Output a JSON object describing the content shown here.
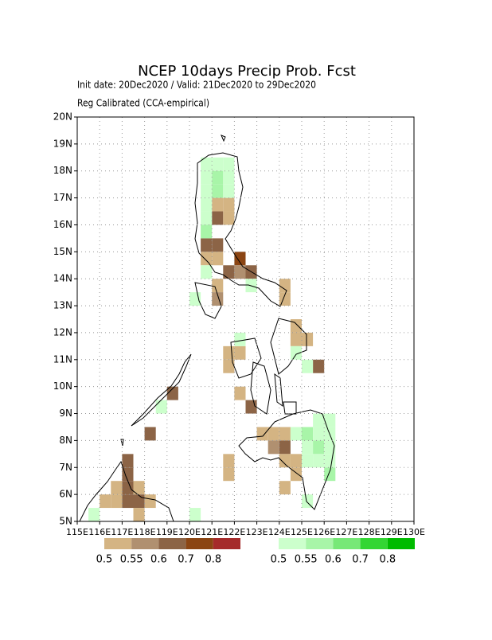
{
  "chart_data": {
    "type": "map-grid",
    "title": "NCEP 10days Precip Prob. Fcst",
    "subtitle_lines": [
      "Init date: 20Dec2020 / Valid: 21Dec2020 to 29Dec2020",
      "Reg Calibrated (CCA-empirical)"
    ],
    "xlim": [
      115,
      130
    ],
    "ylim": [
      5,
      20
    ],
    "grid": true,
    "xticks": [
      {
        "value": 115,
        "label": "115E"
      },
      {
        "value": 116,
        "label": "116E"
      },
      {
        "value": 117,
        "label": "117E"
      },
      {
        "value": 118,
        "label": "118E"
      },
      {
        "value": 119,
        "label": "119E"
      },
      {
        "value": 120,
        "label": "120E"
      },
      {
        "value": 121,
        "label": "121E"
      },
      {
        "value": 122,
        "label": "122E"
      },
      {
        "value": 123,
        "label": "123E"
      },
      {
        "value": 124,
        "label": "124E"
      },
      {
        "value": 125,
        "label": "125E"
      },
      {
        "value": 126,
        "label": "126E"
      },
      {
        "value": 127,
        "label": "127E"
      },
      {
        "value": 128,
        "label": "128E"
      },
      {
        "value": 129,
        "label": "129E"
      },
      {
        "value": 130,
        "label": "130E"
      }
    ],
    "yticks": [
      {
        "value": 5,
        "label": "5N"
      },
      {
        "value": 6,
        "label": "6N"
      },
      {
        "value": 7,
        "label": "7N"
      },
      {
        "value": 8,
        "label": "8N"
      },
      {
        "value": 9,
        "label": "9N"
      },
      {
        "value": 10,
        "label": "10N"
      },
      {
        "value": 11,
        "label": "11N"
      },
      {
        "value": 12,
        "label": "12N"
      },
      {
        "value": 13,
        "label": "13N"
      },
      {
        "value": 14,
        "label": "14N"
      },
      {
        "value": 15,
        "label": "15N"
      },
      {
        "value": 16,
        "label": "16N"
      },
      {
        "value": 17,
        "label": "17N"
      },
      {
        "value": 18,
        "label": "18N"
      },
      {
        "value": 19,
        "label": "19N"
      },
      {
        "value": 20,
        "label": "20N"
      }
    ],
    "dry": {
      "levels": [
        0.5,
        0.55,
        0.6,
        0.7,
        0.8
      ],
      "colors": [
        "#d4b483",
        "#b09070",
        "#8c6446",
        "#8b4513",
        "#a52a2a"
      ],
      "cells": [
        [
          121,
          16.5,
          0.5
        ],
        [
          121.5,
          16.5,
          0.5
        ],
        [
          121,
          16,
          0.6
        ],
        [
          121.5,
          16,
          0.5
        ],
        [
          120.5,
          15,
          0.6
        ],
        [
          121,
          15,
          0.6
        ],
        [
          120.5,
          14.5,
          0.5
        ],
        [
          121,
          14.5,
          0.5
        ],
        [
          122,
          14.5,
          0.7
        ],
        [
          121.5,
          14,
          0.6
        ],
        [
          122,
          14,
          0.55
        ],
        [
          122.5,
          14,
          0.6
        ],
        [
          121,
          13.5,
          0.5
        ],
        [
          121,
          13,
          0.55
        ],
        [
          124,
          13.5,
          0.5
        ],
        [
          124,
          13,
          0.5
        ],
        [
          121.5,
          11,
          0.5
        ],
        [
          122,
          11,
          0.5
        ],
        [
          121.5,
          10.5,
          0.5
        ],
        [
          122,
          9.5,
          0.5
        ],
        [
          122.5,
          9,
          0.6
        ],
        [
          124.5,
          12,
          0.5
        ],
        [
          124.5,
          11.5,
          0.5
        ],
        [
          125,
          11.5,
          0.5
        ],
        [
          125.5,
          10.5,
          0.6
        ],
        [
          123,
          8,
          0.5
        ],
        [
          123.5,
          8,
          0.5
        ],
        [
          124,
          8,
          0.5
        ],
        [
          123.5,
          7.5,
          0.55
        ],
        [
          124,
          7.5,
          0.6
        ],
        [
          124,
          7,
          0.5
        ],
        [
          124.5,
          7,
          0.5
        ],
        [
          124.5,
          6.5,
          0.5
        ],
        [
          124,
          6,
          0.5
        ],
        [
          121.5,
          7,
          0.5
        ],
        [
          121.5,
          6.5,
          0.5
        ],
        [
          117,
          7,
          0.6
        ],
        [
          117,
          6.5,
          0.6
        ],
        [
          117,
          6,
          0.6
        ],
        [
          117,
          5.5,
          0.6
        ],
        [
          117.5,
          5.5,
          0.6
        ],
        [
          116.5,
          6,
          0.5
        ],
        [
          116.5,
          5.5,
          0.5
        ],
        [
          116,
          5.5,
          0.5
        ],
        [
          117.5,
          6,
          0.5
        ],
        [
          118,
          5.5,
          0.5
        ],
        [
          117.5,
          5,
          0.5
        ],
        [
          119,
          9.5,
          0.6
        ],
        [
          118,
          8,
          0.6
        ]
      ]
    },
    "wet": {
      "levels": [
        0.5,
        0.55,
        0.6,
        0.7,
        0.8
      ],
      "colors": [
        "#ccffcc",
        "#a8f5a8",
        "#77e877",
        "#33d633",
        "#00bb00"
      ],
      "cells": [
        [
          120.5,
          18,
          0.5
        ],
        [
          121,
          18,
          0.5
        ],
        [
          121.5,
          18,
          0.5
        ],
        [
          120.5,
          17.5,
          0.5
        ],
        [
          121,
          17.5,
          0.55
        ],
        [
          121.5,
          17.5,
          0.5
        ],
        [
          120.5,
          17,
          0.5
        ],
        [
          121,
          17,
          0.55
        ],
        [
          121.5,
          17,
          0.5
        ],
        [
          120.5,
          16.5,
          0.5
        ],
        [
          120.5,
          16,
          0.5
        ],
        [
          120.5,
          15.5,
          0.55
        ],
        [
          124.5,
          8,
          0.5
        ],
        [
          125,
          8,
          0.55
        ],
        [
          125.5,
          8,
          0.5
        ],
        [
          126,
          8,
          0.5
        ],
        [
          125,
          7.5,
          0.5
        ],
        [
          125.5,
          7.5,
          0.55
        ],
        [
          126,
          7.5,
          0.5
        ],
        [
          125,
          7,
          0.5
        ],
        [
          125.5,
          7,
          0.5
        ],
        [
          126,
          7,
          0.5
        ],
        [
          126,
          6.5,
          0.55
        ],
        [
          125.5,
          8.5,
          0.5
        ],
        [
          126,
          8.5,
          0.5
        ],
        [
          125,
          5.5,
          0.5
        ],
        [
          122,
          11.5,
          0.5
        ],
        [
          124.5,
          11,
          0.5
        ],
        [
          125,
          10.5,
          0.5
        ],
        [
          120,
          13,
          0.5
        ],
        [
          120.5,
          14,
          0.5
        ],
        [
          122.5,
          13.5,
          0.5
        ],
        [
          118.5,
          9,
          0.5
        ],
        [
          115.5,
          5,
          0.5
        ],
        [
          120,
          5,
          0.5
        ]
      ]
    }
  }
}
